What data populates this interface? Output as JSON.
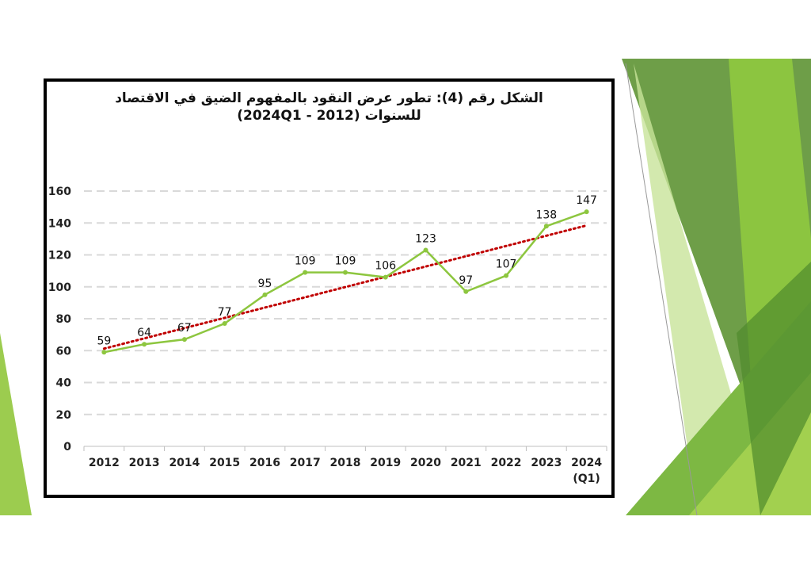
{
  "colors": {
    "line": "#8dc63f",
    "trend": "#c00000",
    "grid": "#d9d9d9",
    "frame": "#000000",
    "bg_green_dark": "#5a8f3a",
    "bg_green_mid": "#7db843",
    "bg_green_light": "#b7dc7a"
  },
  "chart_data": {
    "type": "line",
    "title_line1": "الشكل رقم (4): تطور عرض النقود بالمفهوم الضيق في الاقتصاد",
    "title_line2": "للسنوات (2012 - 2024Q1)",
    "categories": [
      "2012",
      "2013",
      "2014",
      "2015",
      "2016",
      "2017",
      "2018",
      "2019",
      "2020",
      "2021",
      "2022",
      "2023",
      "2024"
    ],
    "last_category_sub": "(Q1)",
    "values": [
      59,
      64,
      67,
      77,
      95,
      109,
      109,
      106,
      123,
      97,
      107,
      138,
      147
    ],
    "y_ticks": [
      0,
      20,
      40,
      60,
      80,
      100,
      120,
      140,
      160
    ],
    "ylim": [
      0,
      160
    ],
    "trendline": "linear",
    "grid": true,
    "legend": "none"
  }
}
